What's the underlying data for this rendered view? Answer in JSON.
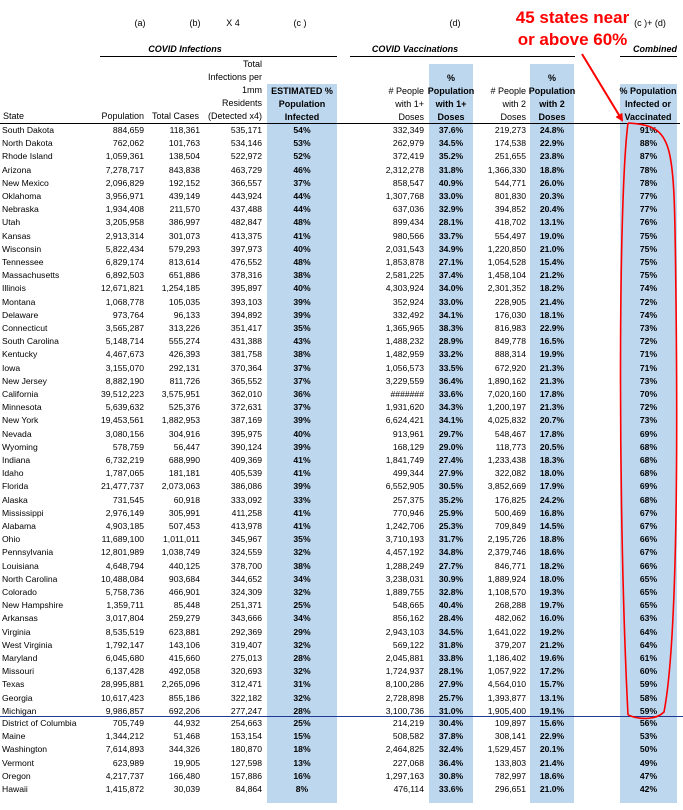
{
  "column_letters": {
    "a": "(a)",
    "b": "(b)",
    "x4": "X 4",
    "c": "(c )",
    "d": "(d)",
    "cd": "(c )+ (d)"
  },
  "group_headers": {
    "infections": "COVID Infections",
    "vaccinations": "COVID Vaccinations",
    "combined": "Combined"
  },
  "column_headers": {
    "state": "State",
    "population": "Population",
    "total_cases": "Total Cases",
    "total_per_mm": [
      "Total",
      "Infections per",
      "1mm",
      "Residents",
      "(Detected x4)"
    ],
    "estimated": [
      "ESTIMATED %",
      "Population",
      "Infected"
    ],
    "people_1plus": [
      "# People",
      "with 1+",
      "Doses"
    ],
    "pct_1plus": [
      "%",
      "Population",
      "with 1+",
      "Doses"
    ],
    "people_2": [
      "# People",
      "with 2",
      "Doses"
    ],
    "pct_2": [
      "%",
      "Population",
      "with 2",
      "Doses"
    ],
    "combined_pct": [
      "% Population",
      "Infected or",
      "Vaccinated"
    ]
  },
  "annotation": {
    "text": "45 states near or above 60%",
    "lines": [
      "45 states near",
      "or above 60%"
    ],
    "color": "#ff0000"
  },
  "colors": {
    "shade": "#bdd7ee",
    "annotation": "#ff0000",
    "divider": "#1f3a93"
  },
  "rows_top": [
    {
      "state": "South Dakota",
      "population": "884,659",
      "cases": "118,361",
      "per_mm": "535,171",
      "est": "54%",
      "people1": "332,349",
      "pct1": "37.6%",
      "people2": "219,273",
      "pct2": "24.8%",
      "combined": "91%"
    },
    {
      "state": "North Dakota",
      "population": "762,062",
      "cases": "101,763",
      "per_mm": "534,146",
      "est": "53%",
      "people1": "262,979",
      "pct1": "34.5%",
      "people2": "174,538",
      "pct2": "22.9%",
      "combined": "88%"
    },
    {
      "state": "Rhode Island",
      "population": "1,059,361",
      "cases": "138,504",
      "per_mm": "522,972",
      "est": "52%",
      "people1": "372,419",
      "pct1": "35.2%",
      "people2": "251,655",
      "pct2": "23.8%",
      "combined": "87%"
    },
    {
      "state": "Arizona",
      "population": "7,278,717",
      "cases": "843,838",
      "per_mm": "463,729",
      "est": "46%",
      "people1": "2,312,278",
      "pct1": "31.8%",
      "people2": "1,366,330",
      "pct2": "18.8%",
      "combined": "78%"
    },
    {
      "state": "New Mexico",
      "population": "2,096,829",
      "cases": "192,152",
      "per_mm": "366,557",
      "est": "37%",
      "people1": "858,547",
      "pct1": "40.9%",
      "people2": "544,771",
      "pct2": "26.0%",
      "combined": "78%"
    },
    {
      "state": "Oklahoma",
      "population": "3,956,971",
      "cases": "439,149",
      "per_mm": "443,924",
      "est": "44%",
      "people1": "1,307,768",
      "pct1": "33.0%",
      "people2": "801,830",
      "pct2": "20.3%",
      "combined": "77%"
    },
    {
      "state": "Nebraska",
      "population": "1,934,408",
      "cases": "211,570",
      "per_mm": "437,488",
      "est": "44%",
      "people1": "637,036",
      "pct1": "32.9%",
      "people2": "394,852",
      "pct2": "20.4%",
      "combined": "77%"
    },
    {
      "state": "Utah",
      "population": "3,205,958",
      "cases": "386,997",
      "per_mm": "482,847",
      "est": "48%",
      "people1": "899,434",
      "pct1": "28.1%",
      "people2": "418,702",
      "pct2": "13.1%",
      "combined": "76%"
    },
    {
      "state": "Kansas",
      "population": "2,913,314",
      "cases": "301,073",
      "per_mm": "413,375",
      "est": "41%",
      "people1": "980,566",
      "pct1": "33.7%",
      "people2": "554,497",
      "pct2": "19.0%",
      "combined": "75%"
    },
    {
      "state": "Wisconsin",
      "population": "5,822,434",
      "cases": "579,293",
      "per_mm": "397,973",
      "est": "40%",
      "people1": "2,031,543",
      "pct1": "34.9%",
      "people2": "1,220,850",
      "pct2": "21.0%",
      "combined": "75%"
    },
    {
      "state": "Tennessee",
      "population": "6,829,174",
      "cases": "813,614",
      "per_mm": "476,552",
      "est": "48%",
      "people1": "1,853,878",
      "pct1": "27.1%",
      "people2": "1,054,528",
      "pct2": "15.4%",
      "combined": "75%"
    },
    {
      "state": "Massachusetts",
      "population": "6,892,503",
      "cases": "651,886",
      "per_mm": "378,316",
      "est": "38%",
      "people1": "2,581,225",
      "pct1": "37.4%",
      "people2": "1,458,104",
      "pct2": "21.2%",
      "combined": "75%"
    },
    {
      "state": "Illinois",
      "population": "12,671,821",
      "cases": "1,254,185",
      "per_mm": "395,897",
      "est": "40%",
      "people1": "4,303,924",
      "pct1": "34.0%",
      "people2": "2,301,352",
      "pct2": "18.2%",
      "combined": "74%"
    },
    {
      "state": "Montana",
      "population": "1,068,778",
      "cases": "105,035",
      "per_mm": "393,103",
      "est": "39%",
      "people1": "352,924",
      "pct1": "33.0%",
      "people2": "228,905",
      "pct2": "21.4%",
      "combined": "72%"
    },
    {
      "state": "Delaware",
      "population": "973,764",
      "cases": "96,133",
      "per_mm": "394,892",
      "est": "39%",
      "people1": "332,492",
      "pct1": "34.1%",
      "people2": "176,030",
      "pct2": "18.1%",
      "combined": "74%"
    },
    {
      "state": "Connecticut",
      "population": "3,565,287",
      "cases": "313,226",
      "per_mm": "351,417",
      "est": "35%",
      "people1": "1,365,965",
      "pct1": "38.3%",
      "people2": "816,983",
      "pct2": "22.9%",
      "combined": "73%"
    },
    {
      "state": "South Carolina",
      "population": "5,148,714",
      "cases": "555,274",
      "per_mm": "431,388",
      "est": "43%",
      "people1": "1,488,232",
      "pct1": "28.9%",
      "people2": "849,778",
      "pct2": "16.5%",
      "combined": "72%"
    },
    {
      "state": "Kentucky",
      "population": "4,467,673",
      "cases": "426,393",
      "per_mm": "381,758",
      "est": "38%",
      "people1": "1,482,959",
      "pct1": "33.2%",
      "people2": "888,314",
      "pct2": "19.9%",
      "combined": "71%"
    },
    {
      "state": "Iowa",
      "population": "3,155,070",
      "cases": "292,131",
      "per_mm": "370,364",
      "est": "37%",
      "people1": "1,056,573",
      "pct1": "33.5%",
      "people2": "672,920",
      "pct2": "21.3%",
      "combined": "71%"
    },
    {
      "state": "New Jersey",
      "population": "8,882,190",
      "cases": "811,726",
      "per_mm": "365,552",
      "est": "37%",
      "people1": "3,229,559",
      "pct1": "36.4%",
      "people2": "1,890,162",
      "pct2": "21.3%",
      "combined": "73%"
    },
    {
      "state": "California",
      "population": "39,512,223",
      "cases": "3,575,951",
      "per_mm": "362,010",
      "est": "36%",
      "people1": "#######",
      "pct1": "33.6%",
      "people2": "7,020,160",
      "pct2": "17.8%",
      "combined": "70%"
    },
    {
      "state": "Minnesota",
      "population": "5,639,632",
      "cases": "525,376",
      "per_mm": "372,631",
      "est": "37%",
      "people1": "1,931,620",
      "pct1": "34.3%",
      "people2": "1,200,197",
      "pct2": "21.3%",
      "combined": "72%"
    },
    {
      "state": "New York",
      "population": "19,453,561",
      "cases": "1,882,953",
      "per_mm": "387,169",
      "est": "39%",
      "people1": "6,624,421",
      "pct1": "34.1%",
      "people2": "4,025,832",
      "pct2": "20.7%",
      "combined": "73%"
    },
    {
      "state": "Nevada",
      "population": "3,080,156",
      "cases": "304,916",
      "per_mm": "395,975",
      "est": "40%",
      "people1": "913,961",
      "pct1": "29.7%",
      "people2": "548,467",
      "pct2": "17.8%",
      "combined": "69%"
    },
    {
      "state": "Wyoming",
      "population": "578,759",
      "cases": "56,447",
      "per_mm": "390,124",
      "est": "39%",
      "people1": "168,129",
      "pct1": "29.0%",
      "people2": "118,773",
      "pct2": "20.5%",
      "combined": "68%"
    },
    {
      "state": "Indiana",
      "population": "6,732,219",
      "cases": "688,990",
      "per_mm": "409,369",
      "est": "41%",
      "people1": "1,841,749",
      "pct1": "27.4%",
      "people2": "1,233,438",
      "pct2": "18.3%",
      "combined": "68%"
    },
    {
      "state": "Idaho",
      "population": "1,787,065",
      "cases": "181,181",
      "per_mm": "405,539",
      "est": "41%",
      "people1": "499,344",
      "pct1": "27.9%",
      "people2": "322,082",
      "pct2": "18.0%",
      "combined": "68%"
    },
    {
      "state": "Florida",
      "population": "21,477,737",
      "cases": "2,073,063",
      "per_mm": "386,086",
      "est": "39%",
      "people1": "6,552,905",
      "pct1": "30.5%",
      "people2": "3,852,669",
      "pct2": "17.9%",
      "combined": "69%"
    },
    {
      "state": "Alaska",
      "population": "731,545",
      "cases": "60,918",
      "per_mm": "333,092",
      "est": "33%",
      "people1": "257,375",
      "pct1": "35.2%",
      "people2": "176,825",
      "pct2": "24.2%",
      "combined": "68%"
    },
    {
      "state": "Mississippi",
      "population": "2,976,149",
      "cases": "305,991",
      "per_mm": "411,258",
      "est": "41%",
      "people1": "770,946",
      "pct1": "25.9%",
      "people2": "500,469",
      "pct2": "16.8%",
      "combined": "67%"
    },
    {
      "state": "Alabama",
      "population": "4,903,185",
      "cases": "507,453",
      "per_mm": "413,978",
      "est": "41%",
      "people1": "1,242,706",
      "pct1": "25.3%",
      "people2": "709,849",
      "pct2": "14.5%",
      "combined": "67%"
    },
    {
      "state": "Ohio",
      "population": "11,689,100",
      "cases": "1,011,011",
      "per_mm": "345,967",
      "est": "35%",
      "people1": "3,710,193",
      "pct1": "31.7%",
      "people2": "2,195,726",
      "pct2": "18.8%",
      "combined": "66%"
    },
    {
      "state": "Pennsylvania",
      "population": "12,801,989",
      "cases": "1,038,749",
      "per_mm": "324,559",
      "est": "32%",
      "people1": "4,457,192",
      "pct1": "34.8%",
      "people2": "2,379,746",
      "pct2": "18.6%",
      "combined": "67%"
    },
    {
      "state": "Louisiana",
      "population": "4,648,794",
      "cases": "440,125",
      "per_mm": "378,700",
      "est": "38%",
      "people1": "1,288,249",
      "pct1": "27.7%",
      "people2": "846,771",
      "pct2": "18.2%",
      "combined": "66%"
    },
    {
      "state": "North Carolina",
      "population": "10,488,084",
      "cases": "903,684",
      "per_mm": "344,652",
      "est": "34%",
      "people1": "3,238,031",
      "pct1": "30.9%",
      "people2": "1,889,924",
      "pct2": "18.0%",
      "combined": "65%"
    },
    {
      "state": "Colorado",
      "population": "5,758,736",
      "cases": "466,901",
      "per_mm": "324,309",
      "est": "32%",
      "people1": "1,889,755",
      "pct1": "32.8%",
      "people2": "1,108,570",
      "pct2": "19.3%",
      "combined": "65%"
    },
    {
      "state": "New Hampshire",
      "population": "1,359,711",
      "cases": "85,448",
      "per_mm": "251,371",
      "est": "25%",
      "people1": "548,665",
      "pct1": "40.4%",
      "people2": "268,288",
      "pct2": "19.7%",
      "combined": "65%"
    },
    {
      "state": "Arkansas",
      "population": "3,017,804",
      "cases": "259,279",
      "per_mm": "343,666",
      "est": "34%",
      "people1": "856,162",
      "pct1": "28.4%",
      "people2": "482,062",
      "pct2": "16.0%",
      "combined": "63%"
    },
    {
      "state": "Virginia",
      "population": "8,535,519",
      "cases": "623,881",
      "per_mm": "292,369",
      "est": "29%",
      "people1": "2,943,103",
      "pct1": "34.5%",
      "people2": "1,641,022",
      "pct2": "19.2%",
      "combined": "64%"
    },
    {
      "state": "West Virginia",
      "population": "1,792,147",
      "cases": "143,106",
      "per_mm": "319,407",
      "est": "32%",
      "people1": "569,122",
      "pct1": "31.8%",
      "people2": "379,207",
      "pct2": "21.2%",
      "combined": "64%"
    },
    {
      "state": "Maryland",
      "population": "6,045,680",
      "cases": "415,660",
      "per_mm": "275,013",
      "est": "28%",
      "people1": "2,045,881",
      "pct1": "33.8%",
      "people2": "1,186,402",
      "pct2": "19.6%",
      "combined": "61%"
    },
    {
      "state": "Missouri",
      "population": "6,137,428",
      "cases": "492,058",
      "per_mm": "320,693",
      "est": "32%",
      "people1": "1,724,937",
      "pct1": "28.1%",
      "people2": "1,057,922",
      "pct2": "17.2%",
      "combined": "60%"
    },
    {
      "state": "Texas",
      "population": "28,995,881",
      "cases": "2,265,096",
      "per_mm": "312,471",
      "est": "31%",
      "people1": "8,100,286",
      "pct1": "27.9%",
      "people2": "4,564,010",
      "pct2": "15.7%",
      "combined": "59%"
    },
    {
      "state": "Georgia",
      "population": "10,617,423",
      "cases": "855,186",
      "per_mm": "322,182",
      "est": "32%",
      "people1": "2,728,898",
      "pct1": "25.7%",
      "people2": "1,393,877",
      "pct2": "13.1%",
      "combined": "58%"
    },
    {
      "state": "Michigan",
      "population": "9,986,857",
      "cases": "692,206",
      "per_mm": "277,247",
      "est": "28%",
      "people1": "3,100,736",
      "pct1": "31.0%",
      "people2": "1,905,400",
      "pct2": "19.1%",
      "combined": "59%"
    }
  ],
  "rows_bottom": [
    {
      "state": "District of Columbia",
      "population": "705,749",
      "cases": "44,932",
      "per_mm": "254,663",
      "est": "25%",
      "people1": "214,219",
      "pct1": "30.4%",
      "people2": "109,897",
      "pct2": "15.6%",
      "combined": "56%"
    },
    {
      "state": "Maine",
      "population": "1,344,212",
      "cases": "51,468",
      "per_mm": "153,154",
      "est": "15%",
      "people1": "508,582",
      "pct1": "37.8%",
      "people2": "308,141",
      "pct2": "22.9%",
      "combined": "53%"
    },
    {
      "state": "Washington",
      "population": "7,614,893",
      "cases": "344,326",
      "per_mm": "180,870",
      "est": "18%",
      "people1": "2,464,825",
      "pct1": "32.4%",
      "people2": "1,529,457",
      "pct2": "20.1%",
      "combined": "50%"
    },
    {
      "state": "Vermont",
      "population": "623,989",
      "cases": "19,905",
      "per_mm": "127,598",
      "est": "13%",
      "people1": "227,068",
      "pct1": "36.4%",
      "people2": "133,803",
      "pct2": "21.4%",
      "combined": "49%"
    },
    {
      "state": "Oregon",
      "population": "4,217,737",
      "cases": "166,480",
      "per_mm": "157,886",
      "est": "16%",
      "people1": "1,297,163",
      "pct1": "30.8%",
      "people2": "782,997",
      "pct2": "18.6%",
      "combined": "47%"
    },
    {
      "state": "Hawaii",
      "population": "1,415,872",
      "cases": "30,039",
      "per_mm": "84,864",
      "est": "8%",
      "people1": "476,114",
      "pct1": "33.6%",
      "people2": "296,651",
      "pct2": "21.0%",
      "combined": "42%"
    }
  ]
}
